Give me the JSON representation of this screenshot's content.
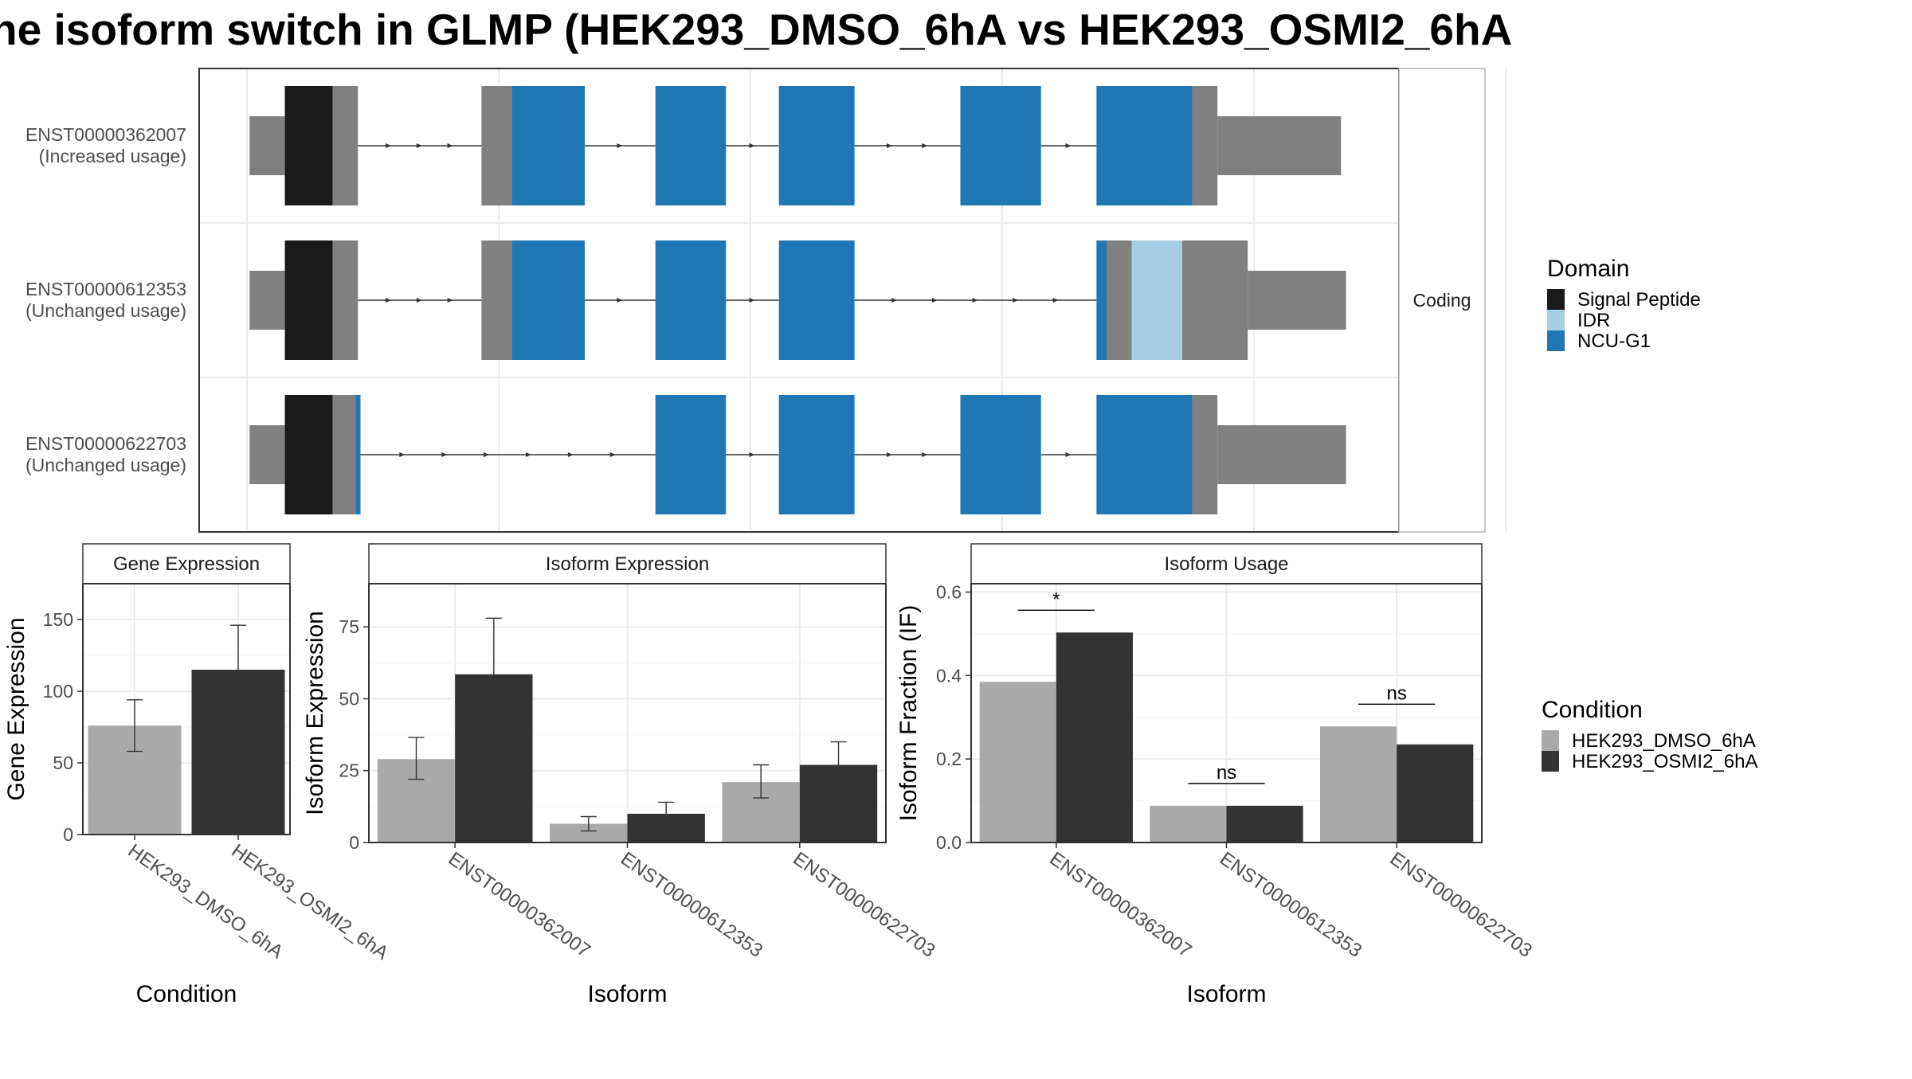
{
  "title": "ne isoform switch in GLMP (HEK293_DMSO_6hA vs HEK293_OSMI2_6hA",
  "colors": {
    "signal_peptide": "#1a1a1a",
    "idr": "#a6cee3",
    "ncu_g1": "#1f78b4",
    "utr": "#808080",
    "dmso": "#a9a9a9",
    "osmi2": "#333333",
    "grid": "#ebebeb",
    "panel_border": "#333333",
    "strip_fill": "#ffffff"
  },
  "transcripts": {
    "strip_label": "Coding",
    "rows": [
      {
        "id": "ENST00000362007",
        "status": "(Increased usage)",
        "exons": [
          {
            "start": 0.0,
            "end": 0.7,
            "type": "utr"
          },
          {
            "start": 0.7,
            "end": 1.65,
            "type": "signal_peptide"
          },
          {
            "start": 1.65,
            "end": 2.15,
            "type": "cds"
          },
          {
            "start": 4.6,
            "end": 5.2,
            "type": "cds"
          },
          {
            "start": 5.2,
            "end": 6.65,
            "type": "ncu_g1"
          },
          {
            "start": 8.05,
            "end": 9.45,
            "type": "ncu_g1"
          },
          {
            "start": 10.5,
            "end": 12.0,
            "type": "ncu_g1"
          },
          {
            "start": 14.1,
            "end": 15.7,
            "type": "ncu_g1"
          },
          {
            "start": 16.8,
            "end": 18.7,
            "type": "ncu_g1"
          },
          {
            "start": 18.7,
            "end": 19.2,
            "type": "cds"
          },
          {
            "start": 19.2,
            "end": 21.65,
            "type": "utr"
          }
        ]
      },
      {
        "id": "ENST00000612353",
        "status": "(Unchanged usage)",
        "exons": [
          {
            "start": 0.0,
            "end": 0.7,
            "type": "utr"
          },
          {
            "start": 0.7,
            "end": 1.65,
            "type": "signal_peptide"
          },
          {
            "start": 1.65,
            "end": 2.15,
            "type": "cds"
          },
          {
            "start": 4.6,
            "end": 5.2,
            "type": "cds"
          },
          {
            "start": 5.2,
            "end": 6.65,
            "type": "ncu_g1"
          },
          {
            "start": 8.05,
            "end": 9.45,
            "type": "ncu_g1"
          },
          {
            "start": 10.5,
            "end": 12.0,
            "type": "ncu_g1"
          },
          {
            "start": 16.8,
            "end": 17.0,
            "type": "ncu_g1"
          },
          {
            "start": 17.0,
            "end": 17.5,
            "type": "cds"
          },
          {
            "start": 17.5,
            "end": 18.5,
            "type": "idr"
          },
          {
            "start": 18.5,
            "end": 19.8,
            "type": "cds"
          },
          {
            "start": 19.8,
            "end": 21.75,
            "type": "utr"
          }
        ]
      },
      {
        "id": "ENST00000622703",
        "status": "(Unchanged usage)",
        "exons": [
          {
            "start": 0.0,
            "end": 0.7,
            "type": "utr"
          },
          {
            "start": 0.7,
            "end": 1.65,
            "type": "signal_peptide"
          },
          {
            "start": 1.65,
            "end": 2.1,
            "type": "cds"
          },
          {
            "start": 2.1,
            "end": 2.2,
            "type": "ncu_g1"
          },
          {
            "start": 8.05,
            "end": 9.45,
            "type": "ncu_g1"
          },
          {
            "start": 10.5,
            "end": 12.0,
            "type": "ncu_g1"
          },
          {
            "start": 14.1,
            "end": 15.7,
            "type": "ncu_g1"
          },
          {
            "start": 16.8,
            "end": 18.7,
            "type": "ncu_g1"
          },
          {
            "start": 18.7,
            "end": 19.2,
            "type": "cds"
          },
          {
            "start": 19.2,
            "end": 21.75,
            "type": "utr"
          }
        ]
      }
    ]
  },
  "legend_domain": {
    "title": "Domain",
    "items": [
      {
        "label": "Signal Peptide",
        "color": "#1a1a1a"
      },
      {
        "label": "IDR",
        "color": "#a6cee3"
      },
      {
        "label": "NCU-G1",
        "color": "#1f78b4"
      }
    ]
  },
  "legend_condition": {
    "title": "Condition",
    "items": [
      {
        "label": "HEK293_DMSO_6hA",
        "color": "#a9a9a9"
      },
      {
        "label": "HEK293_OSMI2_6hA",
        "color": "#333333"
      }
    ]
  },
  "chart_data": [
    {
      "type": "bar",
      "title": "Gene Expression",
      "xlabel": "Condition",
      "ylabel": "Gene Expression",
      "ylim": [
        0,
        175
      ],
      "yticks": [
        0,
        50,
        100,
        150
      ],
      "categories": [
        "HEK293_DMSO_6hA",
        "HEK293_OSMI2_6hA"
      ],
      "values": [
        76,
        115
      ],
      "errors": [
        [
          58,
          94
        ],
        [
          85,
          146
        ]
      ]
    },
    {
      "type": "bar",
      "title": "Isoform Expression",
      "xlabel": "Isoform",
      "ylabel": "Isoform Expression",
      "ylim": [
        0,
        90
      ],
      "yticks": [
        0,
        25,
        50,
        75
      ],
      "categories": [
        "ENST00000362007",
        "ENST00000612353",
        "ENST00000622703"
      ],
      "series": [
        {
          "name": "HEK293_DMSO_6hA",
          "values": [
            29,
            6.5,
            21
          ],
          "errors": [
            [
              22,
              36.5
            ],
            [
              4,
              9
            ],
            [
              15.5,
              27
            ]
          ]
        },
        {
          "name": "HEK293_OSMI2_6hA",
          "values": [
            58.5,
            10,
            27
          ],
          "errors": [
            [
              39.5,
              78
            ],
            [
              6.5,
              14
            ],
            [
              19.5,
              35
            ]
          ]
        }
      ]
    },
    {
      "type": "bar",
      "title": "Isoform Usage",
      "xlabel": "Isoform",
      "ylabel": "Isoform Fraction (IF)",
      "ylim": [
        0,
        0.62
      ],
      "yticks": [
        0.0,
        0.2,
        0.4,
        0.6
      ],
      "categories": [
        "ENST00000362007",
        "ENST00000612353",
        "ENST00000622703"
      ],
      "series": [
        {
          "name": "HEK293_DMSO_6hA",
          "values": [
            0.385,
            0.088,
            0.278
          ]
        },
        {
          "name": "HEK293_OSMI2_6hA",
          "values": [
            0.503,
            0.088,
            0.235
          ]
        }
      ],
      "annotations": [
        "*",
        "ns",
        "ns"
      ]
    }
  ]
}
